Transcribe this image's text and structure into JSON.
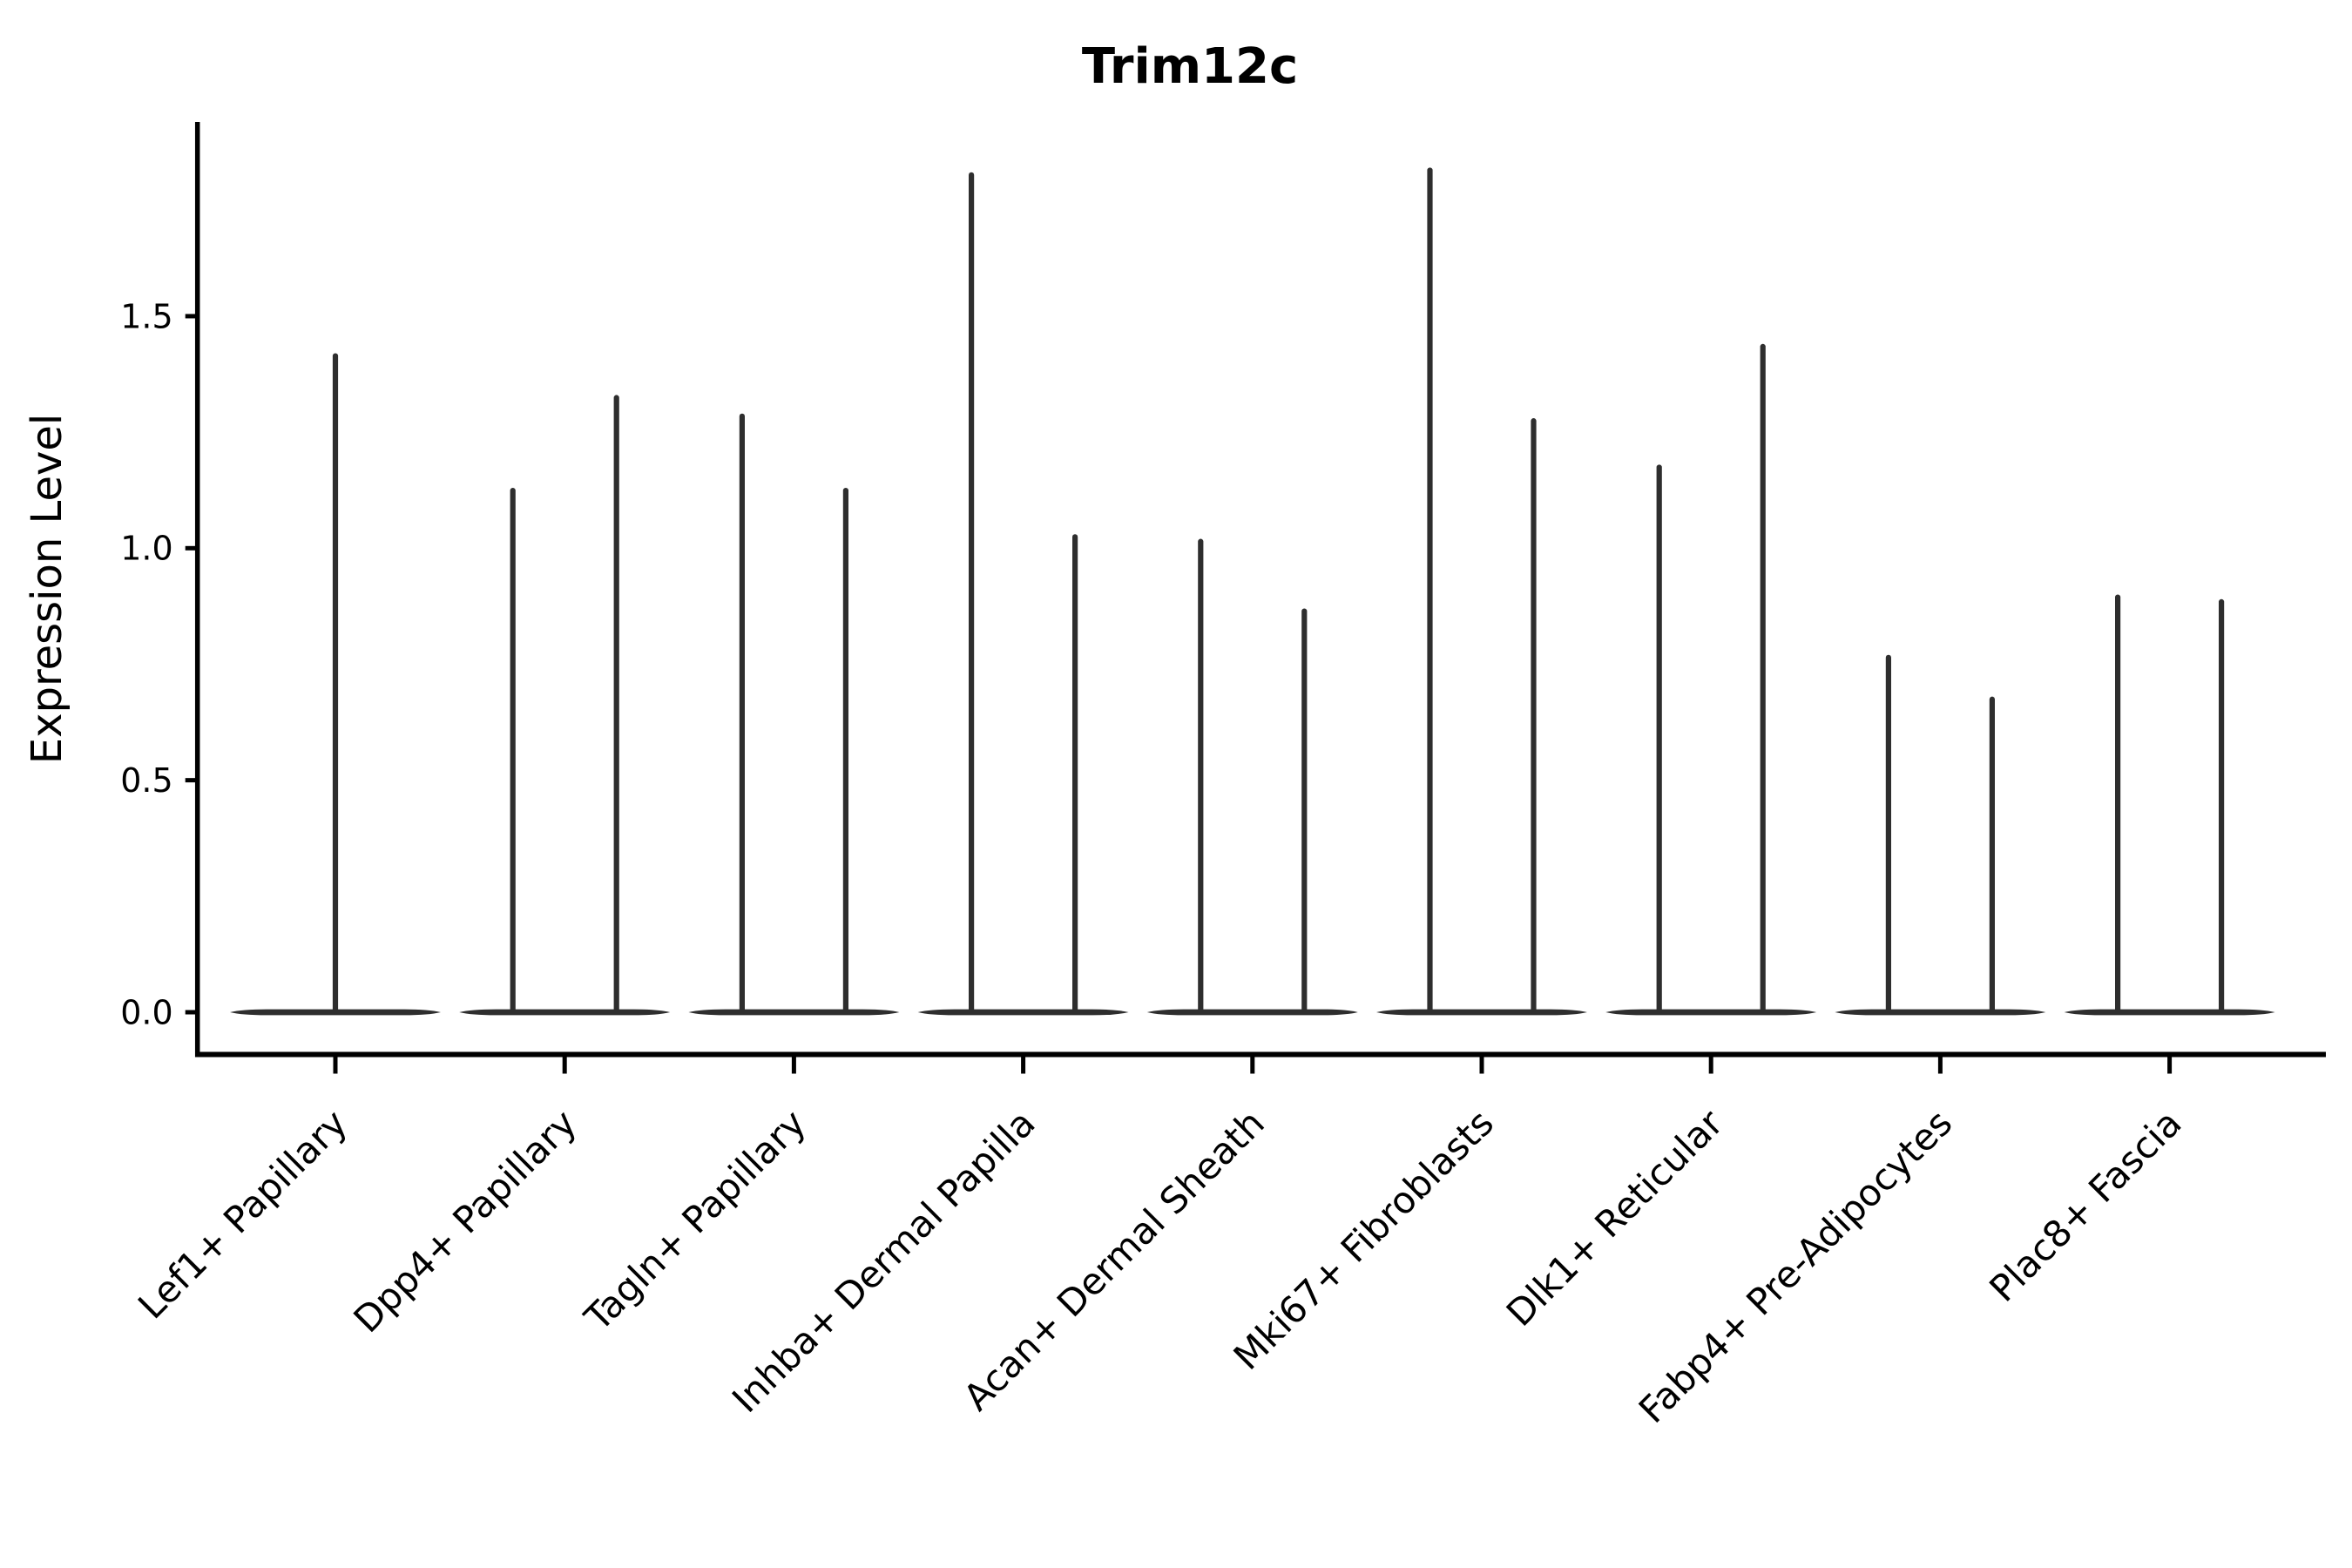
{
  "chart_data": {
    "type": "violin",
    "title": "Trim12c",
    "ylabel": "Expression Level",
    "xlabel": "",
    "ylim": [
      0,
      1.92
    ],
    "yticks": [
      0.0,
      0.5,
      1.0,
      1.5
    ],
    "ytick_labels": [
      "0.0",
      "0.5",
      "1.0",
      "1.5"
    ],
    "grid": false,
    "legend": "none",
    "categories": [
      "Lef1+ Papillary",
      "Dpp4+ Papillary",
      "Tagln+ Papillary",
      "Inhba+ Dermal Papilla",
      "Acan+ Dermal Sheath",
      "Mki67+ Fibroblasts",
      "Dlk1+ Reticular",
      "Fabp4+ Pre-Adipocytes",
      "Plac8+ Fascia"
    ],
    "series": [
      {
        "category": "Lef1+ Papillary",
        "tail_maxima": [
          1.42
        ]
      },
      {
        "category": "Dpp4+ Papillary",
        "tail_maxima": [
          1.13,
          1.33
        ]
      },
      {
        "category": "Tagln+ Papillary",
        "tail_maxima": [
          1.29,
          1.13
        ]
      },
      {
        "category": "Inhba+ Dermal Papilla",
        "tail_maxima": [
          1.81,
          1.03
        ]
      },
      {
        "category": "Acan+ Dermal Sheath",
        "tail_maxima": [
          1.02,
          0.87
        ]
      },
      {
        "category": "Mki67+ Fibroblasts",
        "tail_maxima": [
          1.82,
          1.28
        ]
      },
      {
        "category": "Dlk1+ Reticular",
        "tail_maxima": [
          1.18,
          1.44
        ]
      },
      {
        "category": "Fabp4+ Pre-Adipocytes",
        "tail_maxima": [
          0.77,
          0.68
        ]
      },
      {
        "category": "Plac8+ Fascia",
        "tail_maxima": [
          0.9,
          0.89
        ]
      }
    ],
    "distribution_note": "Each violin is needle-shaped: density mass concentrated at expression 0 (wide flat base) with a thin vertical tail reaching the listed maximum expression value.",
    "colors": {
      "violin": "#2e2e2e",
      "axis": "#000000",
      "background": "#ffffff"
    }
  }
}
